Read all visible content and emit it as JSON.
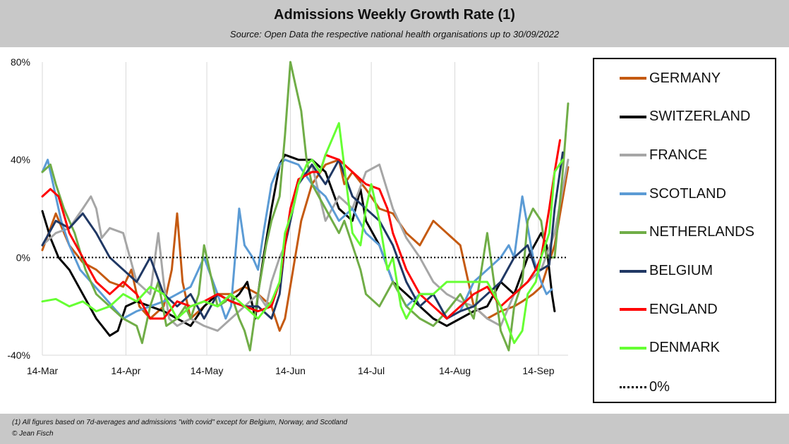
{
  "header": {
    "title": "Admissions Weekly Growth Rate (1)",
    "subtitle": "Source: Open Data the respective national health organisations up to 30/09/2022"
  },
  "footer": {
    "note": "(1) All figures based on 7d-averages and admissions \"with covid\" except for Belgium, Norway, and Scotland",
    "credit": "© Jean Fisch"
  },
  "chart_data": {
    "type": "line",
    "title": "Admissions Weekly Growth Rate (1)",
    "xlabel": "",
    "ylabel": "",
    "x_start": "2022-03-14",
    "x_ticks": [
      "14-Mar",
      "14-Apr",
      "14-May",
      "14-Jun",
      "14-Jul",
      "14-Aug",
      "14-Sep"
    ],
    "y_ticks": [
      "80%",
      "40%",
      "0%",
      "-40%"
    ],
    "ylim": [
      -40,
      80
    ],
    "x_range_days": [
      0,
      195
    ],
    "grid": "vertical",
    "legend_position": "right",
    "reference_line": {
      "name": "0%",
      "value": 0,
      "style": "dotted",
      "color": "#000000"
    },
    "series": [
      {
        "name": "GERMANY",
        "color": "#c55a11",
        "x": [
          0,
          5,
          10,
          15,
          20,
          25,
          30,
          33,
          36,
          40,
          45,
          48,
          50,
          52,
          55,
          60,
          65,
          70,
          75,
          80,
          85,
          88,
          90,
          93,
          96,
          100,
          105,
          110,
          112,
          115,
          120,
          125,
          130,
          135,
          140,
          145,
          150,
          155,
          160,
          165,
          170,
          175,
          178,
          182,
          185,
          190,
          195
        ],
        "y": [
          3,
          18,
          5,
          -2,
          -5,
          -10,
          -12,
          -5,
          -20,
          -25,
          -20,
          -5,
          18,
          -10,
          -25,
          -20,
          -15,
          -15,
          -12,
          -15,
          -20,
          -30,
          -25,
          -5,
          15,
          30,
          38,
          40,
          30,
          35,
          28,
          20,
          18,
          10,
          5,
          15,
          10,
          5,
          -20,
          -25,
          -22,
          -20,
          -18,
          -15,
          -12,
          5,
          37
        ]
      },
      {
        "name": "SWITZERLAND",
        "color": "#000000",
        "x": [
          0,
          3,
          6,
          10,
          15,
          20,
          25,
          28,
          31,
          35,
          40,
          45,
          50,
          55,
          60,
          65,
          70,
          73,
          76,
          79,
          80,
          82,
          85,
          88,
          90,
          95,
          100,
          105,
          110,
          115,
          118,
          120,
          125,
          130,
          135,
          140,
          145,
          150,
          155,
          160,
          165,
          170,
          175,
          180,
          185,
          187,
          189,
          190
        ],
        "y": [
          19,
          8,
          0,
          -5,
          -15,
          -25,
          -32,
          -30,
          -20,
          -18,
          -20,
          -22,
          -25,
          -28,
          -20,
          -15,
          -18,
          -15,
          -10,
          -25,
          -15,
          0,
          20,
          38,
          42,
          40,
          40,
          35,
          20,
          15,
          28,
          15,
          5,
          -10,
          -15,
          -20,
          -25,
          -28,
          -25,
          -22,
          -20,
          -10,
          -15,
          0,
          10,
          5,
          -15,
          -22
        ]
      },
      {
        "name": "FRANCE",
        "color": "#a6a6a6",
        "x": [
          0,
          5,
          10,
          15,
          18,
          20,
          22,
          25,
          30,
          35,
          40,
          43,
          45,
          47,
          50,
          55,
          60,
          65,
          70,
          75,
          80,
          83,
          85,
          88,
          90,
          95,
          100,
          105,
          110,
          115,
          120,
          125,
          130,
          135,
          140,
          145,
          150,
          155,
          160,
          165,
          170,
          175,
          180,
          185,
          190,
          195
        ],
        "y": [
          5,
          10,
          12,
          20,
          25,
          20,
          8,
          12,
          10,
          -10,
          -15,
          10,
          -10,
          -25,
          -28,
          -25,
          -28,
          -30,
          -25,
          -20,
          -15,
          -20,
          -10,
          0,
          5,
          30,
          38,
          15,
          25,
          20,
          35,
          38,
          20,
          8,
          0,
          -10,
          -15,
          -18,
          -20,
          -25,
          -28,
          -15,
          -10,
          -5,
          10,
          40
        ]
      },
      {
        "name": "SCOTLAND",
        "color": "#5b9bd5",
        "x": [
          0,
          2,
          4,
          7,
          10,
          14,
          18,
          22,
          26,
          30,
          35,
          40,
          45,
          50,
          55,
          60,
          65,
          68,
          70,
          73,
          75,
          78,
          80,
          82,
          85,
          88,
          90,
          95,
          100,
          105,
          110,
          115,
          120,
          125,
          130,
          135,
          140,
          145,
          150,
          155,
          160,
          165,
          170,
          173,
          175,
          178,
          182,
          185,
          187,
          189
        ],
        "y": [
          35,
          40,
          30,
          15,
          5,
          -5,
          -10,
          -15,
          -20,
          -25,
          -22,
          -20,
          -18,
          -15,
          -12,
          0,
          -15,
          -25,
          -20,
          20,
          5,
          0,
          -5,
          10,
          30,
          38,
          40,
          38,
          30,
          25,
          15,
          20,
          10,
          5,
          -10,
          -20,
          -15,
          -15,
          -25,
          -22,
          -10,
          -5,
          0,
          5,
          0,
          25,
          0,
          -10,
          -15,
          -13
        ]
      },
      {
        "name": "NETHERLANDS",
        "color": "#70ad47",
        "x": [
          0,
          3,
          5,
          8,
          12,
          16,
          20,
          25,
          30,
          35,
          37,
          40,
          43,
          46,
          50,
          53,
          55,
          58,
          60,
          63,
          65,
          68,
          70,
          73,
          75,
          77,
          80,
          83,
          85,
          88,
          90,
          92,
          94,
          96,
          98,
          100,
          105,
          110,
          112,
          115,
          118,
          120,
          125,
          130,
          135,
          140,
          145,
          150,
          155,
          160,
          165,
          170,
          173,
          175,
          178,
          180,
          182,
          185,
          187,
          190,
          193,
          195
        ],
        "y": [
          35,
          38,
          30,
          20,
          10,
          -5,
          -15,
          -20,
          -25,
          -28,
          -35,
          -20,
          -10,
          -28,
          -25,
          -20,
          -25,
          -15,
          5,
          -10,
          -20,
          -18,
          -15,
          -25,
          -30,
          -38,
          -15,
          5,
          15,
          25,
          50,
          80,
          70,
          60,
          40,
          30,
          20,
          10,
          15,
          5,
          -5,
          -15,
          -20,
          -10,
          -20,
          -25,
          -28,
          -22,
          -15,
          -25,
          10,
          -30,
          -38,
          -20,
          -10,
          15,
          20,
          15,
          0,
          0,
          35,
          63
        ]
      },
      {
        "name": "BELGIUM",
        "color": "#203864",
        "x": [
          0,
          5,
          10,
          15,
          20,
          25,
          30,
          35,
          40,
          45,
          50,
          55,
          60,
          65,
          70,
          75,
          80,
          85,
          88,
          90,
          95,
          100,
          105,
          110,
          115,
          120,
          125,
          130,
          135,
          140,
          145,
          150,
          155,
          160,
          165,
          170,
          175,
          180,
          183,
          185,
          188,
          190,
          193
        ],
        "y": [
          5,
          15,
          12,
          18,
          10,
          0,
          -5,
          -10,
          0,
          -15,
          -20,
          -15,
          -25,
          -15,
          -18,
          -20,
          -20,
          -25,
          -15,
          5,
          30,
          38,
          30,
          40,
          25,
          20,
          15,
          5,
          -10,
          -20,
          -15,
          -25,
          -22,
          -20,
          -15,
          -10,
          0,
          5,
          -5,
          -5,
          -3,
          20,
          43
        ]
      },
      {
        "name": "ENGLAND",
        "color": "#ff0000",
        "x": [
          0,
          3,
          6,
          10,
          15,
          20,
          25,
          30,
          35,
          40,
          45,
          50,
          55,
          60,
          65,
          70,
          75,
          80,
          85,
          88,
          90,
          92,
          95,
          100,
          103,
          105,
          110,
          115,
          120,
          125,
          128,
          130,
          135,
          140,
          145,
          150,
          155,
          160,
          165,
          170,
          175,
          180,
          183,
          185,
          188,
          190,
          192
        ],
        "y": [
          25,
          28,
          25,
          10,
          0,
          -10,
          -15,
          -10,
          -15,
          -25,
          -25,
          -18,
          -20,
          -18,
          -15,
          -18,
          -20,
          -22,
          -20,
          -10,
          5,
          20,
          32,
          35,
          35,
          42,
          40,
          35,
          30,
          28,
          20,
          10,
          -5,
          -15,
          -20,
          -25,
          -20,
          -15,
          -12,
          -20,
          -15,
          -10,
          -5,
          0,
          20,
          35,
          48
        ]
      },
      {
        "name": "DENMARK",
        "color": "#66ff33",
        "x": [
          0,
          5,
          10,
          15,
          20,
          25,
          30,
          35,
          40,
          45,
          50,
          55,
          60,
          65,
          70,
          75,
          80,
          85,
          88,
          90,
          93,
          95,
          98,
          100,
          103,
          105,
          110,
          115,
          118,
          120,
          122,
          125,
          128,
          130,
          133,
          135,
          140,
          145,
          150,
          155,
          160,
          165,
          170,
          175,
          178,
          180,
          183,
          185,
          188,
          190,
          193
        ],
        "y": [
          -18,
          -17,
          -20,
          -18,
          -22,
          -20,
          -15,
          -18,
          -12,
          -15,
          -25,
          -20,
          -18,
          -20,
          -15,
          -20,
          -25,
          -18,
          -10,
          10,
          20,
          30,
          38,
          40,
          35,
          42,
          55,
          10,
          5,
          20,
          30,
          15,
          -5,
          0,
          -20,
          -25,
          -15,
          -15,
          -10,
          -10,
          -10,
          -10,
          -20,
          -35,
          -30,
          -15,
          -10,
          0,
          10,
          35,
          40
        ]
      }
    ]
  },
  "legend": {
    "items": [
      {
        "label": "GERMANY",
        "color": "#c55a11"
      },
      {
        "label": "SWITZERLAND",
        "color": "#000000"
      },
      {
        "label": "FRANCE",
        "color": "#a6a6a6"
      },
      {
        "label": "SCOTLAND",
        "color": "#5b9bd5"
      },
      {
        "label": "NETHERLANDS",
        "color": "#70ad47"
      },
      {
        "label": "BELGIUM",
        "color": "#203864"
      },
      {
        "label": "ENGLAND",
        "color": "#ff0000"
      },
      {
        "label": "DENMARK",
        "color": "#66ff33"
      }
    ],
    "zero_label": "0%"
  }
}
